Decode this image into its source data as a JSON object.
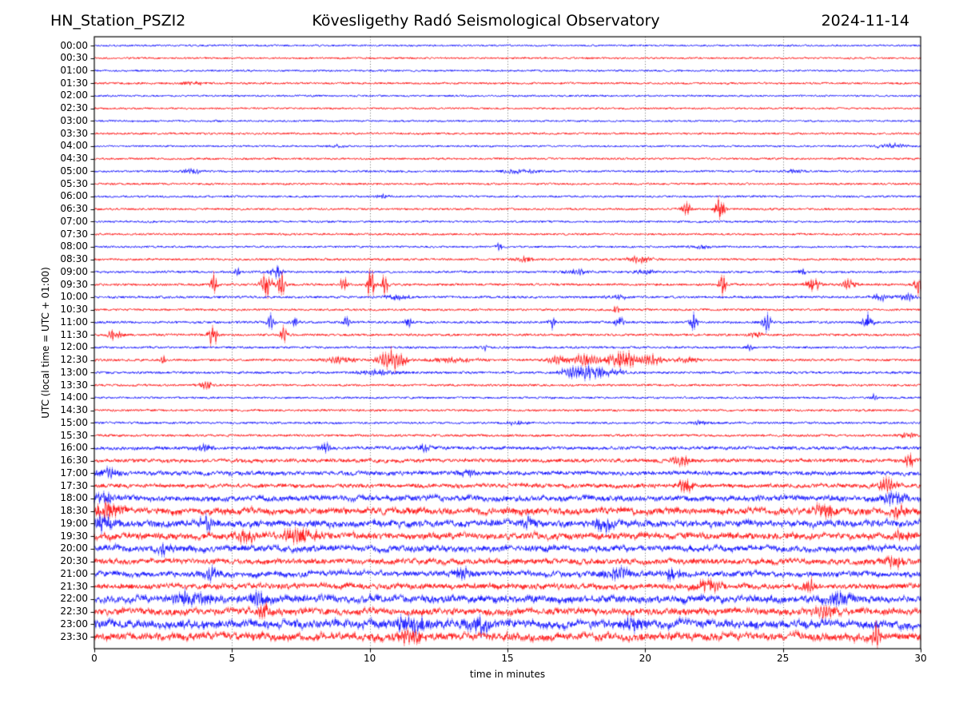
{
  "header": {
    "station": "HN_Station_PSZI2",
    "observatory": "Kövesligethy Radó Seismological Observatory",
    "date": "2024-11-14"
  },
  "chart_data": {
    "type": "line",
    "subtype": "helicorder-seismogram",
    "title": "HN_Station_PSZI2 — Kövesligethy Radó Seismological Observatory — 2024-11-14",
    "xlabel": "time in minutes",
    "ylabel": "UTC (local time = UTC + 01:00)",
    "x_range": [
      0,
      30
    ],
    "x_ticks": [
      0,
      5,
      10,
      15,
      20,
      25,
      30
    ],
    "grid": {
      "x_lines": [
        5,
        10,
        15,
        20,
        25
      ],
      "style": "dotted"
    },
    "minutes_per_row": 30,
    "trace_colors": {
      "hour": "#0000ff",
      "half_hour": "#ff0000"
    },
    "event_fields": [
      "start_min",
      "duration_min",
      "amplitude_px"
    ],
    "rows": [
      {
        "label": "00:00",
        "color": "#0000ff",
        "noise": 1.1,
        "events": []
      },
      {
        "label": "00:30",
        "color": "#ff0000",
        "noise": 1.1,
        "events": []
      },
      {
        "label": "01:00",
        "color": "#0000ff",
        "noise": 1.1,
        "events": []
      },
      {
        "label": "01:30",
        "color": "#ff0000",
        "noise": 1.2,
        "events": [
          [
            3.6,
            0.8,
            1.5
          ]
        ]
      },
      {
        "label": "02:00",
        "color": "#0000ff",
        "noise": 1.1,
        "events": []
      },
      {
        "label": "02:30",
        "color": "#ff0000",
        "noise": 1.1,
        "events": []
      },
      {
        "label": "03:00",
        "color": "#0000ff",
        "noise": 1.1,
        "events": []
      },
      {
        "label": "03:30",
        "color": "#ff0000",
        "noise": 1.2,
        "events": []
      },
      {
        "label": "04:00",
        "color": "#0000ff",
        "noise": 1.1,
        "events": [
          [
            8.8,
            0.6,
            1.5
          ],
          [
            28.9,
            1.2,
            2
          ]
        ]
      },
      {
        "label": "04:30",
        "color": "#ff0000",
        "noise": 1.2,
        "events": []
      },
      {
        "label": "05:00",
        "color": "#0000ff",
        "noise": 1.2,
        "events": [
          [
            3.6,
            0.8,
            2
          ],
          [
            15.5,
            1.5,
            1.6
          ],
          [
            25.4,
            0.8,
            1.4
          ]
        ]
      },
      {
        "label": "05:30",
        "color": "#ff0000",
        "noise": 1.2,
        "events": []
      },
      {
        "label": "06:00",
        "color": "#0000ff",
        "noise": 1.2,
        "events": [
          [
            10.5,
            0.6,
            1.5
          ]
        ]
      },
      {
        "label": "06:30",
        "color": "#ff0000",
        "noise": 1.2,
        "events": [
          [
            21.5,
            0.35,
            7
          ],
          [
            22.7,
            0.4,
            9
          ]
        ]
      },
      {
        "label": "07:00",
        "color": "#0000ff",
        "noise": 1.2,
        "events": []
      },
      {
        "label": "07:30",
        "color": "#ff0000",
        "noise": 1.2,
        "events": []
      },
      {
        "label": "08:00",
        "color": "#0000ff",
        "noise": 1.2,
        "events": [
          [
            14.7,
            0.2,
            4
          ],
          [
            22.0,
            0.8,
            1.6
          ]
        ]
      },
      {
        "label": "08:30",
        "color": "#ff0000",
        "noise": 1.3,
        "events": [
          [
            15.6,
            0.8,
            2
          ],
          [
            19.8,
            1.0,
            2.5
          ]
        ]
      },
      {
        "label": "09:00",
        "color": "#0000ff",
        "noise": 1.3,
        "events": [
          [
            5.2,
            0.2,
            4.5
          ],
          [
            6.6,
            0.5,
            5.5
          ],
          [
            17.6,
            1.0,
            2
          ],
          [
            20.0,
            0.8,
            2
          ],
          [
            25.7,
            0.3,
            2.5
          ]
        ]
      },
      {
        "label": "09:30",
        "color": "#ff0000",
        "noise": 1.4,
        "events": [
          [
            4.35,
            0.3,
            9
          ],
          [
            6.25,
            0.4,
            13
          ],
          [
            6.8,
            0.3,
            11
          ],
          [
            9.05,
            0.25,
            8
          ],
          [
            10.05,
            0.3,
            13
          ],
          [
            10.55,
            0.25,
            10
          ],
          [
            22.8,
            0.3,
            8
          ],
          [
            26.1,
            0.5,
            6
          ],
          [
            27.4,
            0.6,
            4
          ],
          [
            29.9,
            0.3,
            8
          ]
        ]
      },
      {
        "label": "10:00",
        "color": "#0000ff",
        "noise": 1.4,
        "events": [
          [
            11.0,
            1.0,
            2
          ],
          [
            19.0,
            0.8,
            2
          ],
          [
            28.6,
            0.7,
            3
          ],
          [
            29.5,
            0.6,
            3
          ]
        ]
      },
      {
        "label": "10:30",
        "color": "#ff0000",
        "noise": 1.3,
        "events": [
          [
            18.9,
            0.4,
            2.5
          ]
        ]
      },
      {
        "label": "11:00",
        "color": "#0000ff",
        "noise": 1.4,
        "events": [
          [
            6.4,
            0.3,
            6
          ],
          [
            7.3,
            0.3,
            5
          ],
          [
            9.15,
            0.25,
            6
          ],
          [
            11.4,
            0.3,
            4
          ],
          [
            16.6,
            0.25,
            6
          ],
          [
            19.05,
            0.3,
            7
          ],
          [
            21.75,
            0.3,
            7
          ],
          [
            24.4,
            0.35,
            8
          ],
          [
            28.1,
            0.4,
            8
          ]
        ]
      },
      {
        "label": "11:30",
        "color": "#ff0000",
        "noise": 1.4,
        "events": [
          [
            0.65,
            0.3,
            5
          ],
          [
            0.95,
            0.25,
            4
          ],
          [
            4.3,
            0.35,
            11
          ],
          [
            6.9,
            0.3,
            7
          ],
          [
            24.0,
            0.5,
            2.5
          ]
        ]
      },
      {
        "label": "12:00",
        "color": "#0000ff",
        "noise": 1.3,
        "events": [
          [
            14.2,
            0.2,
            2.5
          ],
          [
            23.8,
            0.3,
            2.5
          ]
        ]
      },
      {
        "label": "12:30",
        "color": "#ff0000",
        "noise": 1.4,
        "events": [
          [
            2.5,
            0.2,
            3.5
          ],
          [
            8.9,
            1.2,
            2.5
          ],
          [
            10.8,
            1.0,
            9
          ],
          [
            13.0,
            2.0,
            1.6
          ],
          [
            16.8,
            0.8,
            3
          ],
          [
            17.8,
            1.0,
            4.5
          ],
          [
            19.2,
            1.3,
            7
          ],
          [
            20.3,
            0.8,
            4
          ],
          [
            21.5,
            1.0,
            2
          ]
        ]
      },
      {
        "label": "13:00",
        "color": "#0000ff",
        "noise": 1.4,
        "events": [
          [
            10.3,
            1.5,
            1.8
          ],
          [
            17.2,
            0.8,
            3.5
          ],
          [
            18.0,
            1.2,
            6
          ],
          [
            19.0,
            0.8,
            2.5
          ]
        ]
      },
      {
        "label": "13:30",
        "color": "#ff0000",
        "noise": 1.3,
        "events": [
          [
            4.05,
            0.5,
            3.5
          ]
        ]
      },
      {
        "label": "14:00",
        "color": "#0000ff",
        "noise": 1.2,
        "events": [
          [
            28.3,
            0.25,
            2.5
          ]
        ]
      },
      {
        "label": "14:30",
        "color": "#ff0000",
        "noise": 1.3,
        "events": []
      },
      {
        "label": "15:00",
        "color": "#0000ff",
        "noise": 1.3,
        "events": [
          [
            15.3,
            0.8,
            1.8
          ],
          [
            22.0,
            0.6,
            1.6
          ]
        ]
      },
      {
        "label": "15:30",
        "color": "#ff0000",
        "noise": 1.4,
        "events": [
          [
            29.5,
            0.6,
            2.5
          ]
        ]
      },
      {
        "label": "16:00",
        "color": "#0000ff",
        "noise": 1.9,
        "events": [
          [
            4.0,
            0.5,
            3.5
          ],
          [
            8.4,
            0.4,
            3.5
          ],
          [
            12.0,
            0.5,
            2.5
          ]
        ]
      },
      {
        "label": "16:30",
        "color": "#ff0000",
        "noise": 2.1,
        "events": [
          [
            21.3,
            0.8,
            3.5
          ],
          [
            29.6,
            0.3,
            7
          ]
        ]
      },
      {
        "label": "17:00",
        "color": "#0000ff",
        "noise": 2.3,
        "events": [
          [
            0.5,
            0.8,
            3.5
          ],
          [
            13.5,
            0.6,
            3
          ]
        ]
      },
      {
        "label": "17:30",
        "color": "#ff0000",
        "noise": 2.3,
        "events": [
          [
            21.5,
            0.8,
            4.5
          ],
          [
            28.8,
            0.8,
            5
          ]
        ]
      },
      {
        "label": "18:00",
        "color": "#0000ff",
        "noise": 3.0,
        "events": [
          [
            0.3,
            0.8,
            4.5
          ],
          [
            29.0,
            0.8,
            4.5
          ]
        ]
      },
      {
        "label": "18:30",
        "color": "#ff0000",
        "noise": 3.5,
        "events": [
          [
            0.5,
            1.0,
            6.5
          ],
          [
            26.5,
            0.8,
            5
          ],
          [
            29.2,
            0.6,
            5
          ]
        ]
      },
      {
        "label": "19:00",
        "color": "#0000ff",
        "noise": 3.5,
        "events": [
          [
            0.4,
            0.8,
            6.5
          ],
          [
            4.1,
            0.5,
            5.5
          ],
          [
            15.8,
            0.6,
            4.5
          ],
          [
            18.5,
            0.8,
            4.5
          ]
        ]
      },
      {
        "label": "19:30",
        "color": "#ff0000",
        "noise": 3.3,
        "events": [
          [
            5.5,
            0.8,
            4.5
          ],
          [
            7.5,
            1.5,
            5.5
          ],
          [
            29.3,
            0.6,
            4.5
          ]
        ]
      },
      {
        "label": "20:00",
        "color": "#0000ff",
        "noise": 3.3,
        "events": [
          [
            2.5,
            0.6,
            4.5
          ]
        ]
      },
      {
        "label": "20:30",
        "color": "#ff0000",
        "noise": 3.0,
        "events": [
          [
            29.0,
            0.8,
            4.5
          ]
        ]
      },
      {
        "label": "21:00",
        "color": "#0000ff",
        "noise": 3.0,
        "events": [
          [
            4.2,
            0.8,
            4.5
          ],
          [
            13.3,
            0.8,
            4.5
          ],
          [
            19.0,
            1.0,
            4.5
          ],
          [
            21.0,
            0.6,
            4.5
          ]
        ]
      },
      {
        "label": "21:30",
        "color": "#ff0000",
        "noise": 3.0,
        "events": [
          [
            22.3,
            0.8,
            5.5
          ],
          [
            26.0,
            0.5,
            4.5
          ]
        ]
      },
      {
        "label": "22:00",
        "color": "#0000ff",
        "noise": 3.7,
        "events": [
          [
            3.5,
            1.5,
            5.5
          ],
          [
            6.0,
            0.8,
            5.5
          ],
          [
            27.0,
            1.0,
            4.5
          ]
        ]
      },
      {
        "label": "22:30",
        "color": "#ff0000",
        "noise": 3.5,
        "events": [
          [
            6.2,
            0.5,
            6.5
          ],
          [
            26.5,
            0.8,
            5.5
          ]
        ]
      },
      {
        "label": "23:00",
        "color": "#0000ff",
        "noise": 4.2,
        "events": [
          [
            11.5,
            1.5,
            6.5
          ],
          [
            14.0,
            1.0,
            5.5
          ],
          [
            19.5,
            0.8,
            4.5
          ]
        ]
      },
      {
        "label": "23:30",
        "color": "#ff0000",
        "noise": 4.0,
        "events": [
          [
            11.5,
            1.0,
            5.5
          ],
          [
            28.4,
            0.3,
            9
          ]
        ]
      }
    ]
  }
}
